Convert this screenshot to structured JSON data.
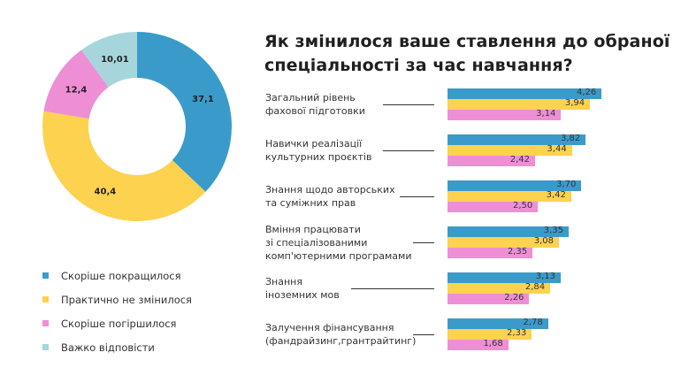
{
  "chart_data": [
    {
      "type": "pie",
      "variant": "donut",
      "series": [
        {
          "name": "Скоріше покращилося",
          "value": 37.1,
          "label": "37,1",
          "color": "#3a9bcb"
        },
        {
          "name": "Практично не змінилося",
          "value": 40.4,
          "label": "40,4",
          "color": "#fdd24f"
        },
        {
          "name": "Скоріше погіршилося",
          "value": 12.4,
          "label": "12,4",
          "color": "#ee8fd6"
        },
        {
          "name": "Важко відповісти",
          "value": 10.01,
          "label": "10,01",
          "color": "#a6d6dc"
        }
      ],
      "legend_position": "bottom-left"
    },
    {
      "type": "bar",
      "orientation": "horizontal",
      "title": "Як змінилося ваше ставлення до обраної спеціальності за час навчання?",
      "categories": [
        [
          "Загальний рівень",
          "фахової підготовки"
        ],
        [
          "Навички реалізації",
          "культурних проєктів"
        ],
        [
          "Знання щодо авторських",
          "та суміжних прав"
        ],
        [
          "Вміння працювати",
          "зі спеціалізованими",
          "комп'ютерними програмами"
        ],
        [
          "Знання",
          "іноземних мов"
        ],
        [
          "Залучення фінансування",
          "(фандрайзинг,грантрайтинг)"
        ]
      ],
      "series": [
        {
          "color": "#3a9bcb",
          "values": [
            4.26,
            3.82,
            3.7,
            3.35,
            3.13,
            2.78
          ],
          "labels": [
            "4,26",
            "3,82",
            "3,70",
            "3,35",
            "3,13",
            "2,78"
          ]
        },
        {
          "color": "#fdd24f",
          "values": [
            3.94,
            3.44,
            3.42,
            3.08,
            2.84,
            2.33
          ],
          "labels": [
            "3,94",
            "3,44",
            "3,42",
            "3,08",
            "2,84",
            "2,33"
          ]
        },
        {
          "color": "#ee8fd6",
          "values": [
            3.14,
            2.42,
            2.5,
            2.35,
            2.26,
            1.68
          ],
          "labels": [
            "3,14",
            "2,42",
            "2,50",
            "2,35",
            "2,26",
            "1,68"
          ]
        }
      ],
      "xlim": [
        0,
        4.3
      ],
      "grid": false
    }
  ],
  "title_lines": [
    "Як змінилося ваше ставлення до обраної",
    "спеціальності за час навчання?"
  ]
}
